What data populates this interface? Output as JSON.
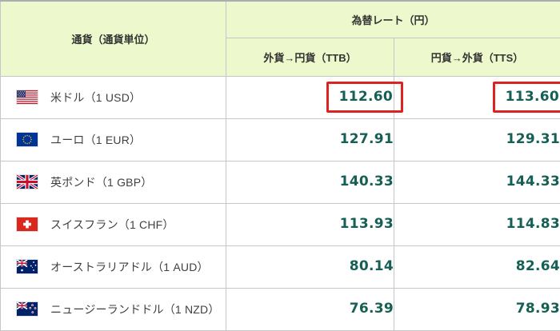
{
  "table": {
    "currency_column_header": "通貨（通貨単位）",
    "rate_group_header": "為替レート（円）",
    "ttb_column_header": "外貨→円貨（TTB）",
    "tts_column_header": "円貨→外貨（TTS）",
    "rows": [
      {
        "flag": "us",
        "flag_name": "us-flag-icon",
        "currency": "米ドル（1 USD）",
        "ttb": "112.60",
        "tts": "113.60",
        "highlighted": true
      },
      {
        "flag": "eu",
        "flag_name": "eu-flag-icon",
        "currency": "ユーロ（1 EUR）",
        "ttb": "127.91",
        "tts": "129.31",
        "highlighted": false
      },
      {
        "flag": "uk",
        "flag_name": "uk-flag-icon",
        "currency": "英ポンド（1 GBP）",
        "ttb": "140.33",
        "tts": "144.33",
        "highlighted": false
      },
      {
        "flag": "ch",
        "flag_name": "ch-flag-icon",
        "currency": "スイスフラン（1 CHF）",
        "ttb": "113.93",
        "tts": "114.83",
        "highlighted": false
      },
      {
        "flag": "au",
        "flag_name": "au-flag-icon",
        "currency": "オーストラリアドル（1 AUD）",
        "ttb": "80.14",
        "tts": "82.64",
        "highlighted": false
      },
      {
        "flag": "nz",
        "flag_name": "nz-flag-icon",
        "currency": "ニュージーランドドル（1 NZD）",
        "ttb": "76.39",
        "tts": "78.93",
        "highlighted": false
      }
    ]
  },
  "colors": {
    "header_bg": "#edf9cc",
    "rate_text": "#155f54",
    "label_text": "#3f3f3f",
    "header_text": "#333333",
    "highlight_border": "#db2322",
    "grid_line": "#c3c7ca",
    "outer_border": "#a9aeb1"
  }
}
